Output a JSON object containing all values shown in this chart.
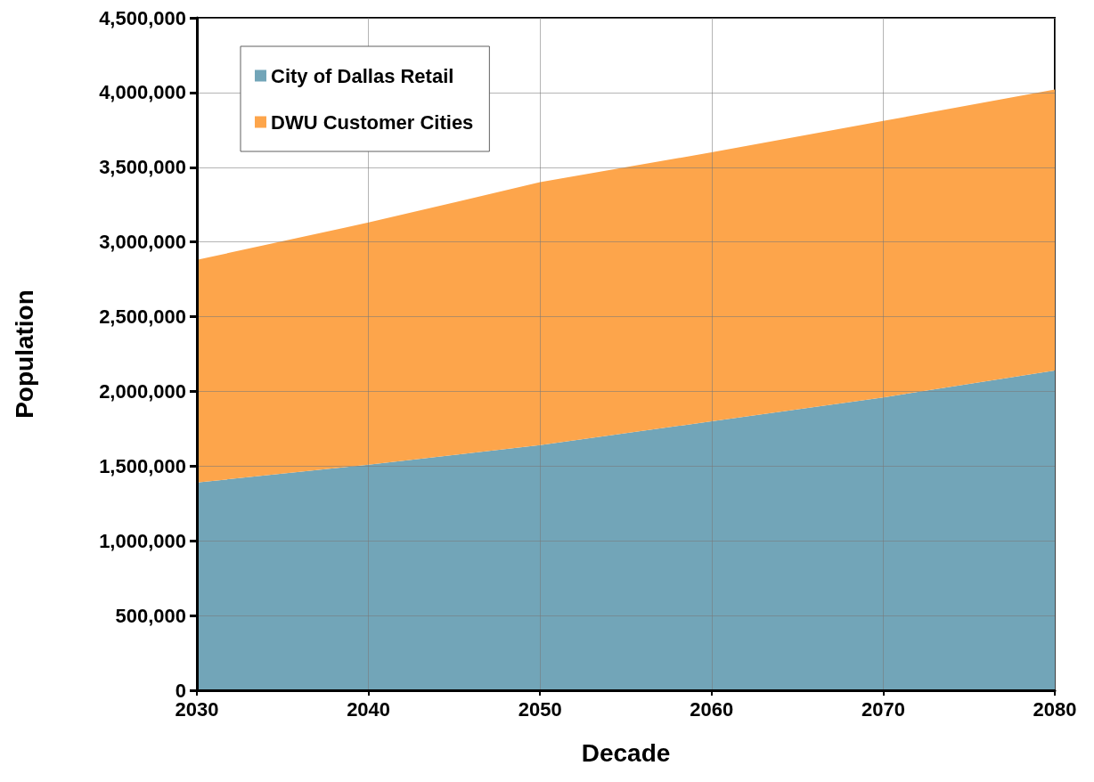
{
  "chart_data": {
    "type": "area",
    "xlabel": "Decade",
    "ylabel": "Population",
    "x": [
      2030,
      2040,
      2050,
      2060,
      2070,
      2080
    ],
    "series": [
      {
        "name": "City of Dallas Retail",
        "color": "#72a5b8",
        "values": [
          1390000,
          1510000,
          1640000,
          1800000,
          1960000,
          2140000
        ]
      },
      {
        "name": "DWU Customer Cities",
        "color": "#fda54b",
        "values": [
          1490000,
          1620000,
          1760000,
          1800000,
          1850000,
          1880000
        ]
      }
    ],
    "stacked": true,
    "xlim": [
      2030,
      2080
    ],
    "xticks": [
      2030,
      2040,
      2050,
      2060,
      2070,
      2080
    ],
    "ylim": [
      0,
      4500000
    ],
    "yticks": [
      0,
      {
        "value": 500000,
        "label": "500,000"
      },
      {
        "value": 1000000,
        "label": "1,000,000"
      },
      {
        "value": 1500000,
        "label": "1,500,000"
      },
      {
        "value": 2000000,
        "label": "2,000,000"
      },
      {
        "value": 2500000,
        "label": "2,500,000"
      },
      {
        "value": 3000000,
        "label": "3,000,000"
      },
      {
        "value": 3500000,
        "label": "3,500,000"
      },
      {
        "value": 4000000,
        "label": "4,000,000"
      },
      {
        "value": 4500000,
        "label": "4,500,000"
      }
    ],
    "grid": true,
    "legend": "top left"
  }
}
